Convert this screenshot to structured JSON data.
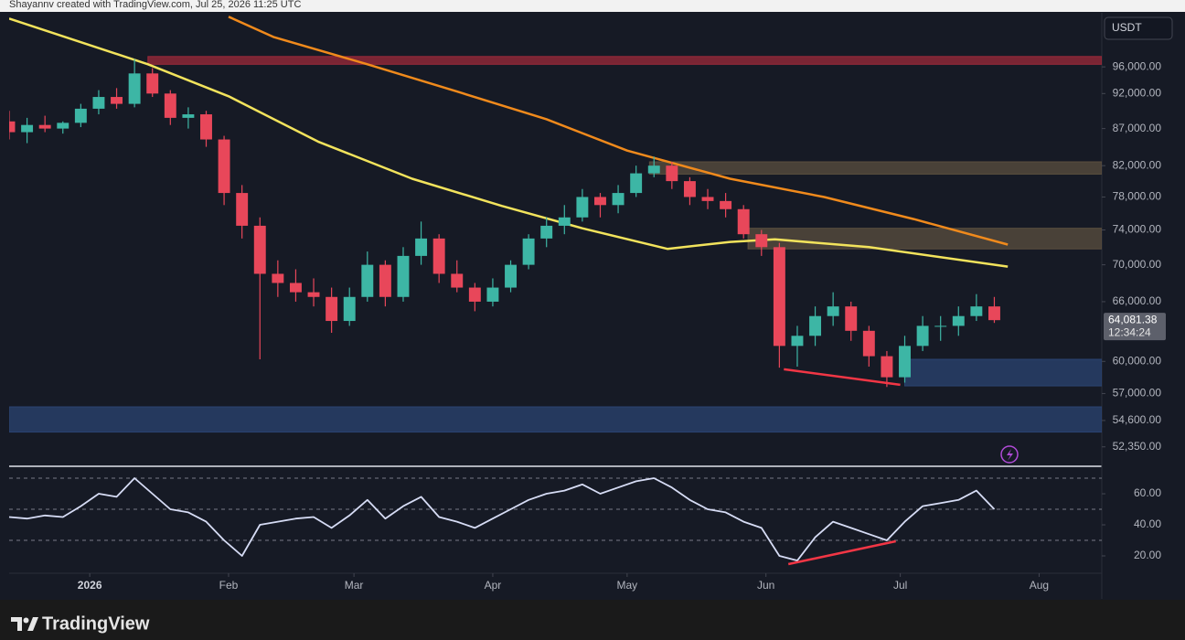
{
  "header": {
    "attribution": "Shayannv created with TradingView.com, Jul 25, 2026 11:25 UTC",
    "currency": "USDT",
    "brand": "TradingView"
  },
  "chart_data": [
    {
      "type": "candlestick",
      "log_scale": true,
      "grid": false,
      "up_color": "#3db6a5",
      "down_color": "#e8475a",
      "xlim": [
        -18,
        226
      ],
      "ylim": [
        50900,
        104500
      ],
      "yticks": [
        {
          "value": 96000,
          "label": "96,000.00"
        },
        {
          "value": 92000,
          "label": "92,000.00"
        },
        {
          "value": 87000,
          "label": "87,000.00"
        },
        {
          "value": 82000,
          "label": "82,000.00"
        },
        {
          "value": 78000,
          "label": "78,000.00"
        },
        {
          "value": 74000,
          "label": "74,000.00"
        },
        {
          "value": 70000,
          "label": "70,000.00"
        },
        {
          "value": 66000,
          "label": "66,000.00"
        },
        {
          "value": 60000,
          "label": "60,000.00"
        },
        {
          "value": 57000,
          "label": "57,000.00"
        },
        {
          "value": 54600,
          "label": "54,600.00"
        },
        {
          "value": 52350,
          "label": "52,350.00"
        }
      ],
      "x": [
        -18,
        -14,
        -10,
        -6,
        -2,
        2,
        6,
        10,
        14,
        18,
        22,
        26,
        30,
        34,
        38,
        42,
        46,
        50,
        54,
        58,
        62,
        66,
        70,
        74,
        78,
        82,
        86,
        90,
        94,
        98,
        102,
        106,
        110,
        114,
        118,
        122,
        126,
        130,
        134,
        138,
        142,
        146,
        150,
        154,
        158,
        162,
        166,
        170,
        174,
        178,
        182,
        186,
        190,
        194,
        198,
        202
      ],
      "open": [
        88000,
        86500,
        87500,
        87000,
        87800,
        89800,
        91500,
        90500,
        95000,
        92000,
        88500,
        89000,
        85500,
        78500,
        74500,
        69000,
        68000,
        67000,
        66500,
        64000,
        66500,
        70000,
        66500,
        71000,
        73000,
        69000,
        67500,
        66000,
        67500,
        70000,
        73000,
        74500,
        75500,
        78000,
        77000,
        78500,
        81000,
        82000,
        80000,
        78000,
        77500,
        76500,
        73500,
        72000,
        61500,
        62500,
        64500,
        65500,
        63000,
        60500,
        58500,
        61500,
        63500,
        63500,
        64500,
        65500
      ],
      "high": [
        89500,
        88500,
        88800,
        88000,
        90500,
        92500,
        92800,
        97200,
        95800,
        92500,
        90000,
        89500,
        86000,
        79500,
        75500,
        70500,
        69500,
        68500,
        67500,
        67500,
        71500,
        70500,
        72000,
        75000,
        73500,
        70500,
        68000,
        68500,
        70500,
        73500,
        75500,
        77000,
        79000,
        78500,
        79500,
        82000,
        83200,
        82500,
        80500,
        79000,
        78500,
        77000,
        74000,
        72500,
        63500,
        65500,
        67000,
        66000,
        63500,
        61000,
        62500,
        64500,
        64500,
        65500,
        66800,
        66500
      ],
      "low": [
        85500,
        85000,
        86500,
        86300,
        87200,
        89000,
        89800,
        90000,
        91500,
        87500,
        87000,
        84500,
        77000,
        73000,
        60200,
        66500,
        66000,
        65500,
        62800,
        63500,
        66000,
        65500,
        66000,
        70000,
        68000,
        67000,
        65000,
        65500,
        67000,
        69500,
        72000,
        73500,
        75000,
        75500,
        76000,
        78000,
        80500,
        79000,
        77000,
        76500,
        75500,
        73000,
        71000,
        59400,
        59500,
        61500,
        63500,
        62000,
        59500,
        57600,
        58000,
        61000,
        62000,
        62500,
        64000,
        63800
      ],
      "close": [
        86500,
        87500,
        87000,
        87800,
        89800,
        91500,
        90500,
        95000,
        92000,
        88500,
        89000,
        85500,
        78500,
        74500,
        69000,
        68000,
        67000,
        66500,
        64000,
        66500,
        70000,
        66500,
        71000,
        73000,
        69000,
        67500,
        66000,
        67500,
        70000,
        73000,
        74500,
        75500,
        78000,
        77000,
        78500,
        81000,
        82000,
        80000,
        78000,
        77500,
        76500,
        73500,
        72000,
        61500,
        62500,
        64500,
        65500,
        63000,
        60500,
        58500,
        61500,
        63500,
        63500,
        64500,
        65500,
        64081.38
      ],
      "last_price": {
        "value": 64081.38,
        "label": "64,081.38"
      },
      "countdown": "12:34:24",
      "moving_averages": [
        {
          "color": "#f2e35c",
          "x": [
            -18,
            13,
            31,
            51,
            72,
            92,
            110,
            129,
            143,
            153,
            174,
            205
          ],
          "values": [
            103700,
            96400,
            91600,
            85200,
            80300,
            76900,
            74200,
            71800,
            72600,
            72900,
            72000,
            69800
          ]
        },
        {
          "color": "#f08a1c",
          "x": [
            31,
            41,
            62,
            82,
            102,
            120,
            143,
            164,
            184,
            205
          ],
          "values": [
            104000,
            100700,
            96400,
            92300,
            88300,
            84000,
            80300,
            78000,
            75300,
            72300
          ]
        }
      ],
      "zones": [
        {
          "x0": 13,
          "low": 96400,
          "high": 97600,
          "color": "#9c2a3a"
        },
        {
          "x0": 125,
          "low": 80900,
          "high": 82500,
          "color": "#5b4f3f"
        },
        {
          "x0": 147,
          "low": 71800,
          "high": 74200,
          "color": "#5b4f3f"
        },
        {
          "x0": 182,
          "low": 57700,
          "high": 60200,
          "color": "#2b4472"
        },
        {
          "x0": -18,
          "low": 53600,
          "high": 55800,
          "color": "#2b4472"
        }
      ],
      "divergence": {
        "color": "#f23645",
        "x": [
          155,
          181
        ],
        "values": [
          59250,
          57800
        ]
      }
    },
    {
      "type": "line",
      "color": "#d6dcf5",
      "xlim": [
        -18,
        226
      ],
      "ylim": [
        10,
        76.5
      ],
      "xticks": [
        {
          "value": 0,
          "label": "2026"
        },
        {
          "value": 31,
          "label": "Feb"
        },
        {
          "value": 59,
          "label": "Mar"
        },
        {
          "value": 90,
          "label": "Apr"
        },
        {
          "value": 120,
          "label": "May"
        },
        {
          "value": 151,
          "label": "Jun"
        },
        {
          "value": 181,
          "label": "Jul"
        },
        {
          "value": 212,
          "label": "Aug"
        }
      ],
      "yticks": [
        {
          "value": 60,
          "label": "60.00"
        },
        {
          "value": 40,
          "label": "40.00"
        },
        {
          "value": 20,
          "label": "20.00"
        }
      ],
      "levels": [
        70,
        50,
        30
      ],
      "x": [
        -18,
        -14,
        -10,
        -6,
        -2,
        2,
        6,
        10,
        14,
        18,
        22,
        26,
        30,
        34,
        38,
        42,
        46,
        50,
        54,
        58,
        62,
        66,
        70,
        74,
        78,
        82,
        86,
        90,
        94,
        98,
        102,
        106,
        110,
        114,
        118,
        122,
        126,
        130,
        134,
        138,
        142,
        146,
        150,
        154,
        158,
        162,
        166,
        170,
        174,
        178,
        182,
        186,
        190,
        194,
        198,
        202
      ],
      "values": [
        45,
        44,
        46,
        45,
        52,
        60,
        58,
        70,
        60,
        50,
        48,
        42,
        30,
        20,
        40,
        42,
        44,
        45,
        38,
        46,
        56,
        44,
        52,
        58,
        45,
        42,
        38,
        44,
        50,
        56,
        60,
        62,
        66,
        60,
        64,
        68,
        70,
        64,
        56,
        50,
        48,
        42,
        38,
        20,
        17,
        32,
        42,
        38,
        34,
        30,
        42,
        52,
        54,
        56,
        62,
        50
      ],
      "divergence": {
        "color": "#f23645",
        "x": [
          156,
          180
        ],
        "values": [
          14.7,
          29.4
        ]
      }
    }
  ]
}
